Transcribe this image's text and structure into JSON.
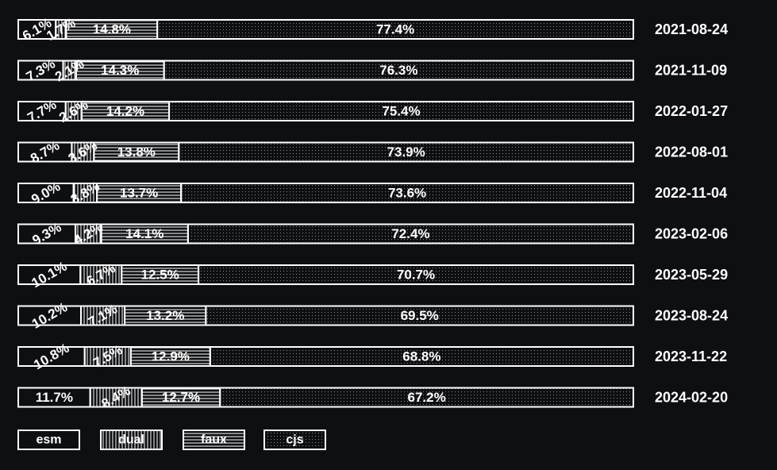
{
  "chart_data": {
    "type": "bar",
    "orientation": "horizontal",
    "stacked": "percent",
    "colors": {
      "background": "#0e0f12",
      "foreground": "#ffffff"
    },
    "categories": [
      "2021-08-24",
      "2021-11-09",
      "2022-01-27",
      "2022-08-01",
      "2022-11-04",
      "2023-02-06",
      "2023-05-29",
      "2023-08-24",
      "2023-11-22",
      "2024-02-20"
    ],
    "category_position": "right",
    "legend_position": "bottom-left",
    "series": [
      {
        "name": "esm",
        "pattern": "none",
        "labels": [
          "6.1%",
          "7.3%",
          "7.7%",
          "8.7%",
          "9.0%",
          "9.3%",
          "10.1%",
          "10.2%",
          "10.8%",
          "11.7%"
        ],
        "values": [
          6.1,
          7.3,
          7.7,
          8.7,
          9.0,
          9.3,
          10.1,
          10.2,
          10.8,
          11.7
        ]
      },
      {
        "name": "dual",
        "pattern": "vertical",
        "labels": [
          "1.7%",
          "2.1%",
          "2.6%",
          "3.6%",
          "3.8%",
          "4.2%",
          "6.7%",
          "7.1%",
          "7.5%",
          "8.4%"
        ],
        "values": [
          1.7,
          2.1,
          2.6,
          3.6,
          3.8,
          4.2,
          6.7,
          7.1,
          7.5,
          8.4
        ]
      },
      {
        "name": "faux",
        "pattern": "horizontal",
        "labels": [
          "14.8%",
          "14.3%",
          "14.2%",
          "13.8%",
          "13.7%",
          "14.1%",
          "12.5%",
          "13.2%",
          "12.9%",
          "12.7%"
        ],
        "values": [
          14.8,
          14.3,
          14.2,
          13.8,
          13.7,
          14.1,
          12.5,
          13.2,
          12.9,
          12.7
        ]
      },
      {
        "name": "cjs",
        "pattern": "dots",
        "labels": [
          "77.4%",
          "76.3%",
          "75.4%",
          "73.9%",
          "73.6%",
          "72.4%",
          "70.7%",
          "69.5%",
          "68.8%",
          "67.2%"
        ],
        "values": [
          77.4,
          76.3,
          75.4,
          73.9,
          73.6,
          72.4,
          70.7,
          69.5,
          68.8,
          67.2
        ]
      }
    ]
  }
}
